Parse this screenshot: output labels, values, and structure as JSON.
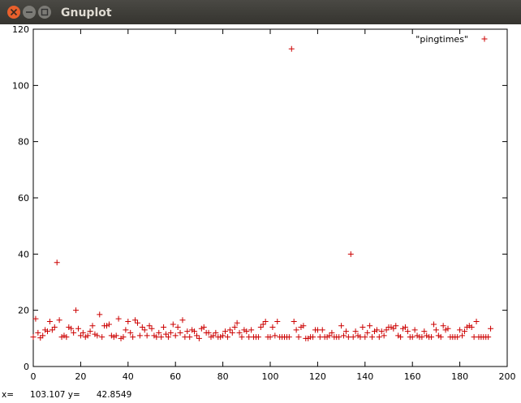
{
  "window": {
    "title": "Gnuplot"
  },
  "chart_data": {
    "type": "scatter",
    "x": [
      0,
      1,
      2,
      3,
      4,
      5,
      6,
      7,
      8,
      9,
      10,
      11,
      12,
      13,
      14,
      15,
      16,
      17,
      18,
      19,
      20,
      21,
      22,
      23,
      24,
      25,
      26,
      27,
      28,
      29,
      30,
      31,
      32,
      33,
      34,
      35,
      36,
      37,
      38,
      39,
      40,
      41,
      42,
      43,
      44,
      45,
      46,
      47,
      48,
      49,
      50,
      51,
      52,
      53,
      54,
      55,
      56,
      57,
      58,
      59,
      60,
      61,
      62,
      63,
      64,
      65,
      66,
      67,
      68,
      69,
      70,
      71,
      72,
      73,
      74,
      75,
      76,
      77,
      78,
      79,
      80,
      81,
      82,
      83,
      84,
      85,
      86,
      87,
      88,
      89,
      90,
      91,
      92,
      93,
      94,
      95,
      96,
      97,
      98,
      99,
      100,
      101,
      102,
      103,
      104,
      105,
      106,
      107,
      108,
      109,
      110,
      111,
      112,
      113,
      114,
      115,
      116,
      117,
      118,
      119,
      120,
      121,
      122,
      123,
      124,
      125,
      126,
      127,
      128,
      129,
      130,
      131,
      132,
      133,
      134,
      135,
      136,
      137,
      138,
      139,
      140,
      141,
      142,
      143,
      144,
      145,
      146,
      147,
      148,
      149,
      150,
      151,
      152,
      153,
      154,
      155,
      156,
      157,
      158,
      159,
      160,
      161,
      162,
      163,
      164,
      165,
      166,
      167,
      168,
      169,
      170,
      171,
      172,
      173,
      174,
      175,
      176,
      177,
      178,
      179,
      180,
      181,
      182,
      183,
      184,
      185,
      186,
      187,
      188,
      189,
      190,
      191,
      192,
      193
    ],
    "series": [
      {
        "name": "\"pingtimes\"",
        "color": "#cc0000",
        "values": [
          10.5,
          17,
          12,
          10.2,
          11,
          13,
          12.5,
          16,
          13,
          14,
          37,
          16.5,
          10.5,
          11,
          10.5,
          14,
          13.5,
          12,
          20,
          13.5,
          11,
          12,
          10.5,
          11,
          12.5,
          14.5,
          11.5,
          11,
          18.5,
          10.5,
          14.5,
          14.5,
          15,
          11,
          10.5,
          11,
          17,
          10,
          10.5,
          13,
          16,
          12,
          10.5,
          16.5,
          15.5,
          11,
          14,
          13,
          11,
          14.5,
          13.5,
          11,
          10.5,
          12,
          10.5,
          14,
          11.5,
          10.5,
          12,
          15,
          11,
          14,
          12,
          16.5,
          10.5,
          12.5,
          10.5,
          13,
          12.5,
          11,
          10,
          13.5,
          14,
          12,
          12,
          10.5,
          11,
          12,
          10.5,
          10.5,
          11,
          12.5,
          10.5,
          13,
          12,
          14,
          15.5,
          12,
          10.5,
          13,
          12.5,
          10.5,
          13,
          10.5,
          10.5,
          10.5,
          14,
          15,
          16,
          10.5,
          10.5,
          14,
          11,
          16,
          10.5,
          10.5,
          10.5,
          10.5,
          10.5,
          113,
          16,
          13,
          10.5,
          14,
          14.5,
          10,
          10,
          10.5,
          10.5,
          13,
          13,
          10.5,
          13,
          10.5,
          10.5,
          11,
          12,
          10.5,
          10.5,
          10.5,
          14.5,
          11,
          12.5,
          10.5,
          40,
          10.5,
          12.5,
          11,
          10.5,
          14,
          10.5,
          12,
          14.5,
          10.5,
          12.5,
          13,
          10.5,
          12.5,
          11,
          13,
          14,
          14,
          13.5,
          14.5,
          11,
          10.5,
          13.5,
          14,
          12.5,
          10.5,
          10.5,
          13,
          11,
          10.5,
          10.5,
          12.5,
          11,
          10.5,
          10.5,
          15,
          13,
          11,
          10.5,
          14.5,
          13,
          13.5,
          10.5,
          10.5,
          10.5,
          10.5,
          13,
          11,
          12.5,
          14,
          14.5,
          14,
          10.5,
          16,
          10.5,
          10.5,
          10.5,
          10.5,
          10.5,
          13.5
        ]
      }
    ],
    "xlim": [
      0,
      200
    ],
    "xticks": [
      0,
      20,
      40,
      60,
      80,
      100,
      120,
      140,
      160,
      180,
      200
    ],
    "ylim": [
      0,
      120
    ],
    "yticks": [
      0,
      20,
      40,
      60,
      80,
      100,
      120
    ],
    "grid": false,
    "legend": "top-right"
  },
  "status_bar": {
    "text": "x=      103.107 y=      42.8549"
  }
}
